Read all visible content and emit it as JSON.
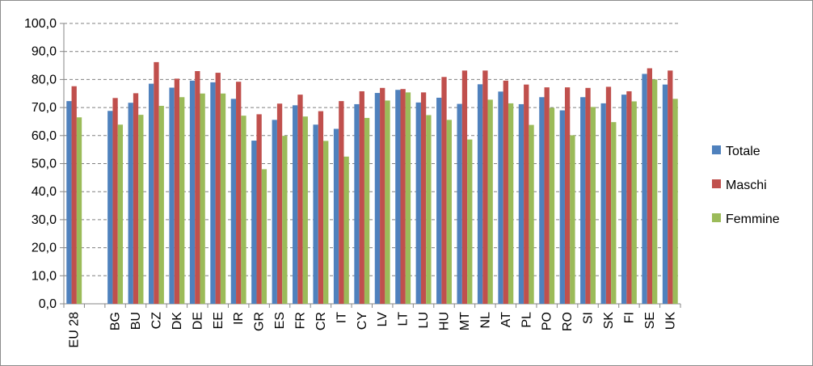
{
  "chart_data": {
    "type": "bar",
    "title": "",
    "xlabel": "",
    "ylabel": "",
    "ylim": [
      0,
      100
    ],
    "yticks": [
      "0,0",
      "10,0",
      "20,0",
      "30,0",
      "40,0",
      "50,0",
      "60,0",
      "70,0",
      "80,0",
      "90,0",
      "100,0"
    ],
    "grid": "dashed horizontal",
    "legend_position": "right",
    "categories": [
      "EU 28",
      "",
      "BG",
      "BU",
      "CZ",
      "DK",
      "DE",
      "EE",
      "IR",
      "GR",
      "ES",
      "FR",
      "CR",
      "IT",
      "CY",
      "LV",
      "LT",
      "LU",
      "HU",
      "MT",
      "NL",
      "AT",
      "PL",
      "PO",
      "RO",
      "SI",
      "SK",
      "FI",
      "SE",
      "UK"
    ],
    "series": [
      {
        "name": "Totale",
        "color": "#4f81bd",
        "values": [
          72.3,
          null,
          68.8,
          71.7,
          78.5,
          77.1,
          79.6,
          79.0,
          73.1,
          58.2,
          65.6,
          70.8,
          63.9,
          62.4,
          71.2,
          75.2,
          76.3,
          71.8,
          73.5,
          71.3,
          78.3,
          75.7,
          71.2,
          73.7,
          69.0,
          73.7,
          71.5,
          74.6,
          82.0,
          78.2
        ]
      },
      {
        "name": "Maschi",
        "color": "#c0504d",
        "values": [
          77.6,
          null,
          73.4,
          75.1,
          86.2,
          80.3,
          83.0,
          82.4,
          79.2,
          67.6,
          71.4,
          74.6,
          68.7,
          72.3,
          75.8,
          77.0,
          76.6,
          75.4,
          80.9,
          83.2,
          83.2,
          79.6,
          78.2,
          77.2,
          77.2,
          77.0,
          77.4,
          75.8,
          84.0,
          83.2
        ]
      },
      {
        "name": "Femmine",
        "color": "#9bbb59",
        "values": [
          66.5,
          null,
          63.9,
          67.4,
          70.6,
          73.7,
          75.0,
          75.0,
          67.1,
          48.0,
          59.9,
          66.8,
          58.1,
          52.5,
          66.3,
          72.5,
          75.4,
          67.3,
          65.6,
          58.6,
          72.8,
          71.5,
          63.8,
          69.9,
          60.1,
          70.2,
          64.8,
          72.2,
          80.0,
          73.1
        ]
      }
    ]
  }
}
